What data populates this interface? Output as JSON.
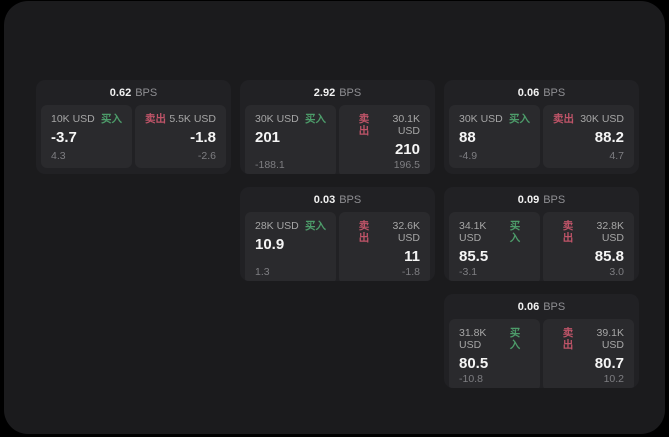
{
  "labels": {
    "buy": "买入",
    "sell": "卖出",
    "bps_unit": "BPS"
  },
  "colors": {
    "background": "#000000",
    "panel": "#1b1b1d",
    "card": "#212124",
    "subpanel": "#2a2a2d",
    "buy_accent": "#4d9c6a",
    "sell_accent": "#bf5468",
    "value_text": "#f5f5f5",
    "muted_text": "#7e7e82"
  },
  "cards": [
    {
      "bps": "0.62",
      "buy": {
        "amount": "10K USD",
        "value": "-3.7",
        "delta": "4.3"
      },
      "sell": {
        "amount": "5.5K USD",
        "value": "-1.8",
        "delta": "-2.6"
      }
    },
    {
      "bps": "2.92",
      "buy": {
        "amount": "30K USD",
        "value": "201",
        "delta": "-188.1"
      },
      "sell": {
        "amount": "30.1K USD",
        "value": "210",
        "delta": "196.5"
      }
    },
    {
      "bps": "0.06",
      "buy": {
        "amount": "30K USD",
        "value": "88",
        "delta": "-4.9"
      },
      "sell": {
        "amount": "30K USD",
        "value": "88.2",
        "delta": "4.7"
      }
    },
    {
      "bps": "0.03",
      "buy": {
        "amount": "28K USD",
        "value": "10.9",
        "delta": "1.3"
      },
      "sell": {
        "amount": "32.6K USD",
        "value": "11",
        "delta": "-1.8"
      }
    },
    {
      "bps": "0.09",
      "buy": {
        "amount": "34.1K USD",
        "value": "85.5",
        "delta": "-3.1"
      },
      "sell": {
        "amount": "32.8K USD",
        "value": "85.8",
        "delta": "3.0"
      }
    },
    {
      "bps": "0.06",
      "buy": {
        "amount": "31.8K USD",
        "value": "80.5",
        "delta": "-10.8"
      },
      "sell": {
        "amount": "39.1K USD",
        "value": "80.7",
        "delta": "10.2"
      }
    }
  ]
}
